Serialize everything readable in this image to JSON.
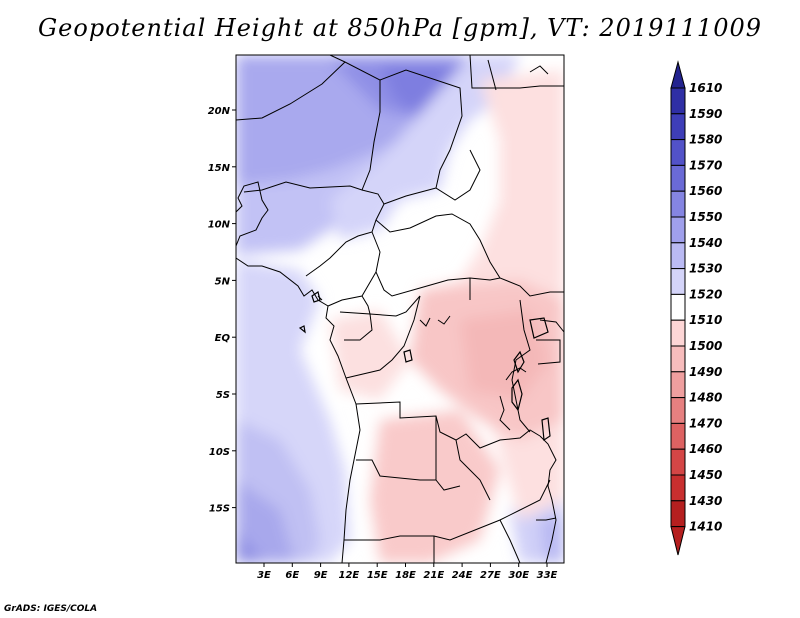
{
  "title": "Geopotential Height at 850hPa [gpm], VT: 2019111009",
  "credit": "GrADS: IGES/COLA",
  "map": {
    "lat_labels": [
      "20N",
      "15N",
      "10N",
      "5N",
      "EQ",
      "5S",
      "10S",
      "15S"
    ],
    "lon_labels": [
      "3E",
      "6E",
      "9E",
      "12E",
      "15E",
      "18E",
      "21E",
      "24E",
      "27E",
      "30E",
      "33E"
    ]
  },
  "colorbar": {
    "levels": [
      "1610",
      "1590",
      "1580",
      "1570",
      "1560",
      "1550",
      "1540",
      "1530",
      "1520",
      "1510",
      "1500",
      "1490",
      "1480",
      "1470",
      "1460",
      "1450",
      "1430",
      "1410"
    ],
    "colors": [
      "#23238f",
      "#2f2fa5",
      "#3e3eb8",
      "#5252c8",
      "#6a6ad6",
      "#8585e2",
      "#a0a0ec",
      "#babaf3",
      "#d4d4f9",
      "#ffffff",
      "#fdd6d6",
      "#f7bcbc",
      "#ef9f9f",
      "#e68080",
      "#dd6262",
      "#d44646",
      "#c82f2f",
      "#b51f1f"
    ]
  }
}
